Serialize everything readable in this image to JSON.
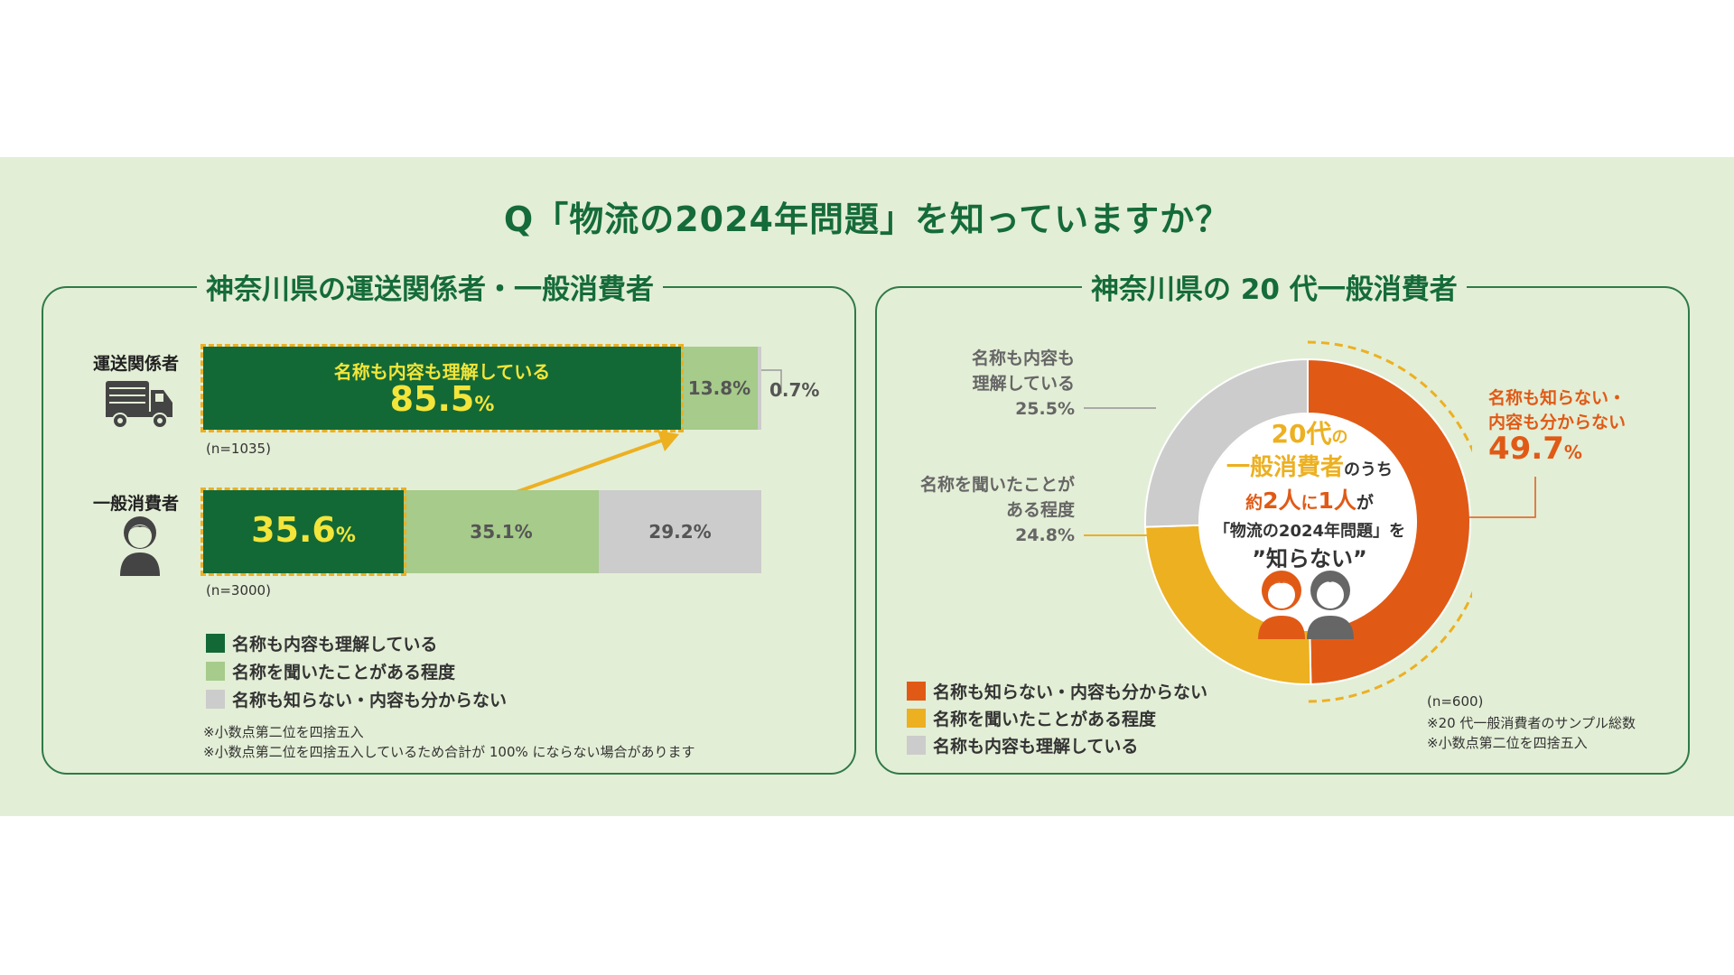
{
  "question": "Q「物流の2024年問題」を知っていますか？",
  "colors": {
    "dark_green": "#126936",
    "light_green": "#a6cb8a",
    "gray": "#cccccc",
    "orange": "#e05a16",
    "yellow": "#ecb021",
    "highlight_text": "#f3e53a"
  },
  "left": {
    "title": "神奈川県の運送関係者・一般消費者",
    "rows": [
      {
        "label": "運送関係者",
        "icon": "truck-icon",
        "n": "(n=1035)",
        "highlight_label": "名称も内容も理解している",
        "highlight_value": "85.5",
        "highlight_unit": "%",
        "seg2": "13.8%",
        "seg3": "0.7%"
      },
      {
        "label": "一般消費者",
        "icon": "person-icon",
        "n": "(n=3000)",
        "highlight_value": "35.6",
        "highlight_unit": "%",
        "seg2": "35.1%",
        "seg3": "29.2%"
      }
    ],
    "legend": [
      "名称も内容も理解している",
      "名称を聞いたことがある程度",
      "名称も知らない・内容も分からない"
    ],
    "notes": [
      "※小数点第二位を四捨五入",
      "※小数点第二位を四捨五入しているため合計が 100% にならない場合があります"
    ]
  },
  "right": {
    "title": "神奈川県の 20 代一般消費者",
    "labels": {
      "understand_1": "名称も内容も",
      "understand_2": "理解している",
      "understand_pct": "25.5%",
      "heard_1": "名称を聞いたことが",
      "heard_2": "ある程度",
      "heard_pct": "24.8%",
      "unknown_1": "名称も知らない・",
      "unknown_2": "内容も分からない",
      "unknown_value": "49.7",
      "unknown_unit": "%"
    },
    "center": {
      "l1a": "20代",
      "l1b": "の",
      "l2a": "一般消費者",
      "l2b": "のうち",
      "l3a": "約",
      "l3b": "2人",
      "l3c": "に",
      "l3d": "1人",
      "l3e": "が",
      "l4": "「物流の2024年問題」を",
      "l5": "”知らない”"
    },
    "legend": [
      "名称も知らない・内容も分からない",
      "名称を聞いたことがある程度",
      "名称も内容も理解している"
    ],
    "notes": [
      "(n=600)",
      "※20 代一般消費者のサンプル総数",
      "※小数点第二位を四捨五入"
    ]
  },
  "chart_data": [
    {
      "type": "bar",
      "orientation": "horizontal-stacked",
      "categories": [
        "運送関係者",
        "一般消費者"
      ],
      "series": [
        {
          "name": "名称も内容も理解している",
          "values": [
            85.5,
            35.6
          ]
        },
        {
          "name": "名称を聞いたことがある程度",
          "values": [
            13.8,
            35.1
          ]
        },
        {
          "name": "名称も知らない・内容も分からない",
          "values": [
            0.7,
            29.2
          ]
        }
      ],
      "xlim": [
        0,
        100
      ]
    },
    {
      "type": "pie",
      "labels": [
        "名称も知らない・内容も分からない",
        "名称を聞いたことがある程度",
        "名称も内容も理解している"
      ],
      "values": [
        49.7,
        24.8,
        25.5
      ]
    }
  ]
}
